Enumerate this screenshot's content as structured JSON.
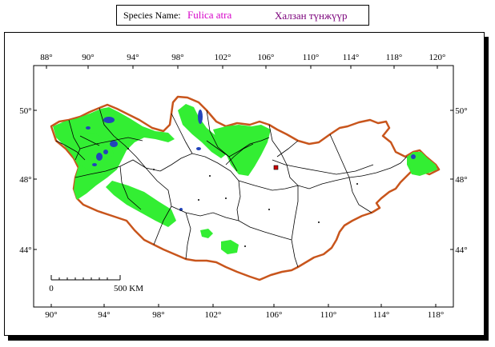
{
  "header": {
    "species_label": "Species Name:",
    "species_latin": "Fulica atra",
    "species_local": "Халзан түнжүүр"
  },
  "map": {
    "top_lon_labels": [
      "88°",
      "90°",
      "94°",
      "98°",
      "102°",
      "106°",
      "110°",
      "114°",
      "118°",
      "120°"
    ],
    "bottom_lon_labels": [
      "90°",
      "94°",
      "98°",
      "102°",
      "106°",
      "110°",
      "114°",
      "118°"
    ],
    "left_lat_labels": [
      "50°",
      "48°",
      "44°"
    ],
    "right_lat_labels": [
      "50°",
      "48°",
      "44°"
    ],
    "scale_bar": {
      "start_label": "0",
      "end_label": "500 KM"
    },
    "colors": {
      "border": "#c8551c",
      "range": "#33ee33",
      "water": "#2244bb",
      "admin": "#000000",
      "capital": "#cc0000"
    }
  }
}
